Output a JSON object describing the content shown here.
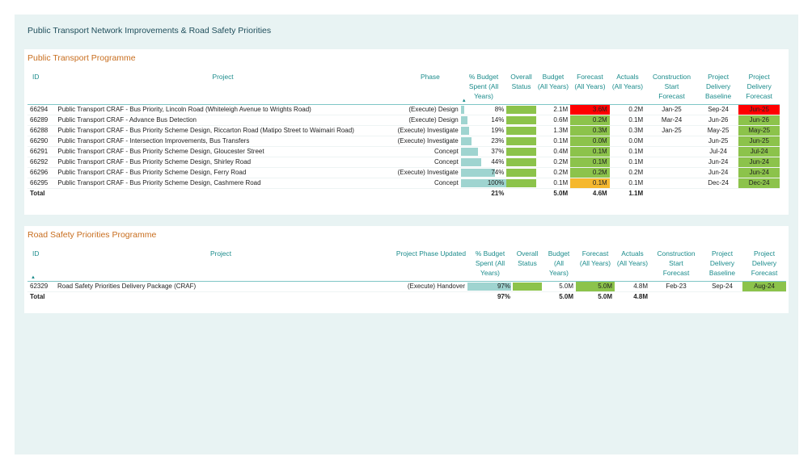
{
  "page_title": "Public Transport Network Improvements & Road Safety Priorities",
  "colors": {
    "green": "#8cc34b",
    "red": "#ff0000",
    "amber": "#f5b82e",
    "teal": "#1a8b8b",
    "orange": "#c86e1f"
  },
  "pt": {
    "title": "Public Transport Programme",
    "headers": {
      "id": "ID",
      "project": "Project",
      "phase": "Phase",
      "pct": [
        "% Budget",
        "Spent (All",
        "Years)"
      ],
      "status": [
        "Overall",
        "Status"
      ],
      "budget": [
        "Budget",
        "(All Years)"
      ],
      "forecast": [
        "Forecast",
        "(All Years)"
      ],
      "actuals": [
        "Actuals",
        "(All Years)"
      ],
      "cstart": [
        "Construction",
        "Start",
        "Forecast"
      ],
      "baseline": [
        "Project",
        "Delivery",
        "Baseline"
      ],
      "dforecast": [
        "Project",
        "Delivery",
        "Forecast"
      ]
    },
    "rows": [
      {
        "id": "66294",
        "project": "Public Transport CRAF - Bus Priority, Lincoln Road (Whiteleigh Avenue to Wrights Road)",
        "phase": "(Execute) Design",
        "pct_label": "8%",
        "pct": 8,
        "status": "green",
        "budget": "2.1M",
        "forecast": "3.6M",
        "forecast_color": "red",
        "actuals": "0.2M",
        "cstart": "Jan-25",
        "baseline": "Sep-24",
        "dforecast": "Jun-25",
        "dforecast_color": "red"
      },
      {
        "id": "66289",
        "project": "Public Transport CRAF - Advance Bus Detection",
        "phase": "(Execute) Design",
        "pct_label": "14%",
        "pct": 14,
        "status": "green",
        "budget": "0.6M",
        "forecast": "0.2M",
        "forecast_color": "green",
        "actuals": "0.1M",
        "cstart": "Mar-24",
        "baseline": "Jun-26",
        "dforecast": "Jun-26",
        "dforecast_color": "green"
      },
      {
        "id": "66288",
        "project": "Public Transport CRAF - Bus Priority Scheme Design, Riccarton Road (Matipo Street to Waimairi Road)",
        "phase": "(Execute) Investigate",
        "pct_label": "19%",
        "pct": 19,
        "status": "green",
        "budget": "1.3M",
        "forecast": "0.3M",
        "forecast_color": "green",
        "actuals": "0.3M",
        "cstart": "Jan-25",
        "baseline": "May-25",
        "dforecast": "May-25",
        "dforecast_color": "green"
      },
      {
        "id": "66290",
        "project": "Public Transport CRAF - Intersection Improvements, Bus Transfers",
        "phase": "(Execute) Investigate",
        "pct_label": "23%",
        "pct": 23,
        "status": "green",
        "budget": "0.1M",
        "forecast": "0.0M",
        "forecast_color": "green",
        "actuals": "0.0M",
        "cstart": "",
        "baseline": "Jun-25",
        "dforecast": "Jun-25",
        "dforecast_color": "green"
      },
      {
        "id": "66291",
        "project": "Public Transport CRAF - Bus Priority Scheme Design, Gloucester Street",
        "phase": "Concept",
        "pct_label": "37%",
        "pct": 37,
        "status": "green",
        "budget": "0.4M",
        "forecast": "0.1M",
        "forecast_color": "green",
        "actuals": "0.1M",
        "cstart": "",
        "baseline": "Jul-24",
        "dforecast": "Jul-24",
        "dforecast_color": "green"
      },
      {
        "id": "66292",
        "project": "Public Transport CRAF - Bus Priority Scheme Design, Shirley Road",
        "phase": "Concept",
        "pct_label": "44%",
        "pct": 44,
        "status": "green",
        "budget": "0.2M",
        "forecast": "0.1M",
        "forecast_color": "green",
        "actuals": "0.1M",
        "cstart": "",
        "baseline": "Jun-24",
        "dforecast": "Jun-24",
        "dforecast_color": "green"
      },
      {
        "id": "66296",
        "project": "Public Transport CRAF - Bus Priority Scheme Design, Ferry Road",
        "phase": "(Execute) Investigate",
        "pct_label": "74%",
        "pct": 74,
        "status": "green",
        "budget": "0.2M",
        "forecast": "0.2M",
        "forecast_color": "green",
        "actuals": "0.2M",
        "cstart": "",
        "baseline": "Jun-24",
        "dforecast": "Jun-24",
        "dforecast_color": "green"
      },
      {
        "id": "66295",
        "project": "Public Transport CRAF - Bus Priority Scheme Design, Cashmere Road",
        "phase": "Concept",
        "pct_label": "100%",
        "pct": 100,
        "status": "green",
        "budget": "0.1M",
        "forecast": "0.1M",
        "forecast_color": "amber",
        "actuals": "0.1M",
        "cstart": "",
        "baseline": "Dec-24",
        "dforecast": "Dec-24",
        "dforecast_color": "green"
      }
    ],
    "total": {
      "label": "Total",
      "pct": "21%",
      "budget": "5.0M",
      "forecast": "4.6M",
      "actuals": "1.1M"
    }
  },
  "rs": {
    "title": "Road Safety Priorities Programme",
    "headers": {
      "id": "ID",
      "project": "Project",
      "phase": "Project Phase Updated",
      "pct": [
        "% Budget",
        "Spent (All",
        "Years)"
      ],
      "status": [
        "Overall",
        "Status"
      ],
      "budget": [
        "Budget",
        "(All Years)"
      ],
      "forecast": [
        "Forecast",
        "(All Years)"
      ],
      "actuals": [
        "Actuals",
        "(All Years)"
      ],
      "cstart": [
        "Construction",
        "Start",
        "Forecast"
      ],
      "baseline": [
        "Project",
        "Delivery",
        "Baseline"
      ],
      "dforecast": [
        "Project",
        "Delivery",
        "Forecast"
      ]
    },
    "rows": [
      {
        "id": "62329",
        "project": "Road Safety Priorities Delivery Package (CRAF)",
        "phase": "(Execute) Handover",
        "pct_label": "97%",
        "pct": 97,
        "status": "green",
        "budget": "5.0M",
        "forecast": "5.0M",
        "forecast_color": "green",
        "actuals": "4.8M",
        "cstart": "Feb-23",
        "baseline": "Sep-24",
        "dforecast": "Aug-24",
        "dforecast_color": "green"
      }
    ],
    "total": {
      "label": "Total",
      "pct": "97%",
      "budget": "5.0M",
      "forecast": "5.0M",
      "actuals": "4.8M"
    }
  }
}
